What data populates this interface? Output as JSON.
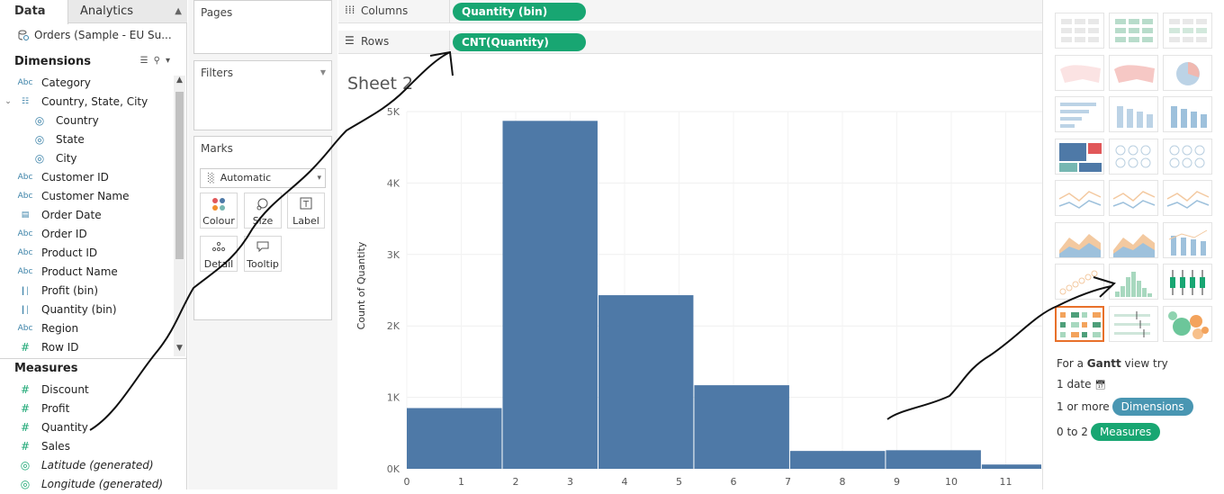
{
  "tabs": {
    "data": "Data",
    "analytics": "Analytics"
  },
  "datasource": "Orders (Sample - EU Su...",
  "dimensions_title": "Dimensions",
  "dimensions": [
    {
      "type": "Abc",
      "label": "Category",
      "indent": 0
    },
    {
      "type": "hier",
      "label": "Country, State, City",
      "indent": 0
    },
    {
      "type": "geo",
      "label": "Country",
      "indent": 1
    },
    {
      "type": "geo",
      "label": "State",
      "indent": 1
    },
    {
      "type": "geo",
      "label": "City",
      "indent": 1
    },
    {
      "type": "Abc",
      "label": "Customer ID",
      "indent": 0
    },
    {
      "type": "Abc",
      "label": "Customer Name",
      "indent": 0
    },
    {
      "type": "date",
      "label": "Order Date",
      "indent": 0
    },
    {
      "type": "Abc",
      "label": "Order ID",
      "indent": 0
    },
    {
      "type": "Abc",
      "label": "Product ID",
      "indent": 0
    },
    {
      "type": "Abc",
      "label": "Product Name",
      "indent": 0
    },
    {
      "type": "bin",
      "label": "Profit (bin)",
      "indent": 0
    },
    {
      "type": "bin",
      "label": "Quantity (bin)",
      "indent": 0
    },
    {
      "type": "Abc",
      "label": "Region",
      "indent": 0
    },
    {
      "type": "#",
      "label": "Row ID",
      "indent": 0
    }
  ],
  "measures_title": "Measures",
  "measures": [
    {
      "type": "#",
      "label": "Discount",
      "italic": false
    },
    {
      "type": "#",
      "label": "Profit",
      "italic": false
    },
    {
      "type": "#",
      "label": "Quantity",
      "italic": false
    },
    {
      "type": "#",
      "label": "Sales",
      "italic": false
    },
    {
      "type": "geo",
      "label": "Latitude (generated)",
      "italic": true
    },
    {
      "type": "geo",
      "label": "Longitude (generated)",
      "italic": true
    }
  ],
  "pages_title": "Pages",
  "filters_title": "Filters",
  "marks": {
    "title": "Marks",
    "type": "Automatic",
    "buttons": [
      {
        "label": "Colour",
        "icon": "colour-icon"
      },
      {
        "label": "Size",
        "icon": "size-icon"
      },
      {
        "label": "Label",
        "icon": "label-icon"
      },
      {
        "label": "Detail",
        "icon": "detail-icon"
      },
      {
        "label": "Tooltip",
        "icon": "tooltip-icon"
      }
    ]
  },
  "columns": {
    "label": "Columns",
    "pill": "Quantity (bin)"
  },
  "rows": {
    "label": "Rows",
    "pill": "CNT(Quantity)"
  },
  "sheet_title": "Sheet 2",
  "colors": {
    "bar": "#4e79a7",
    "pill": "#18a672",
    "dimension_badge": "#4996b2",
    "measure_badge": "#18a672",
    "selected_thumb": "#e8702a"
  },
  "chart_data": {
    "type": "bar",
    "ylabel": "Count of Quantity",
    "yticks": [
      "0K",
      "1K",
      "2K",
      "3K",
      "4K",
      "5K"
    ],
    "ylim": [
      0,
      5000
    ],
    "xticks": [
      "0",
      "1",
      "2",
      "3",
      "4",
      "5",
      "6",
      "7",
      "8",
      "9",
      "10",
      "11"
    ],
    "bins": [
      {
        "start": 0,
        "end": 1.76,
        "value": 850
      },
      {
        "start": 1.76,
        "end": 3.52,
        "value": 4870
      },
      {
        "start": 3.52,
        "end": 5.28,
        "value": 2430
      },
      {
        "start": 5.28,
        "end": 7.04,
        "value": 1170
      },
      {
        "start": 7.04,
        "end": 8.8,
        "value": 250
      },
      {
        "start": 8.8,
        "end": 10.56,
        "value": 260
      },
      {
        "start": 10.56,
        "end": 12.32,
        "value": 60
      }
    ],
    "grid": true
  },
  "showme": {
    "hint_prefix": "For a",
    "hint_chart": "Gantt",
    "hint_suffix": "view try",
    "req1": "1 date",
    "req2_prefix": "1 or more",
    "req2_badge": "Dimensions",
    "req3_prefix": "0 to 2",
    "req3_badge": "Measures"
  }
}
